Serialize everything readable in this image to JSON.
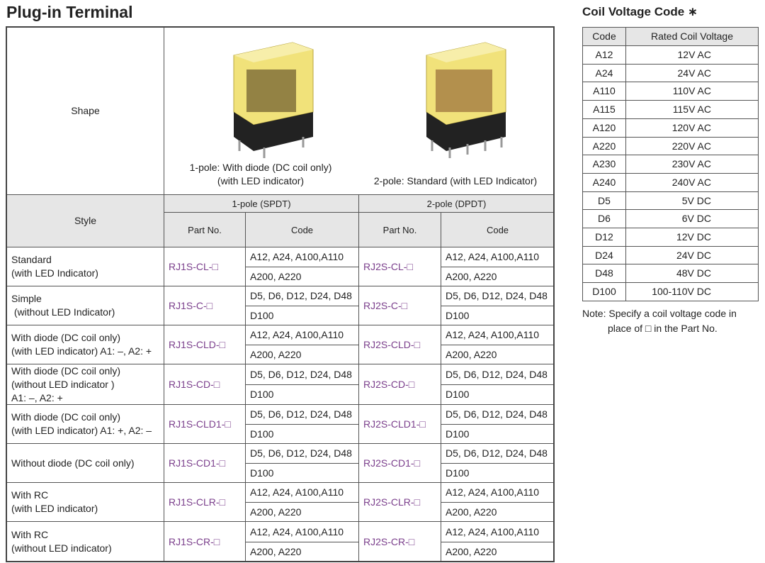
{
  "title": "Plug-in Terminal",
  "shape": {
    "label": "Shape",
    "captions": [
      [
        "1-pole: With diode (DC coil only)",
        "(with LED indicator)"
      ],
      [
        "2-pole: Standard (with LED Indicator)"
      ]
    ]
  },
  "table": {
    "style_header": "Style",
    "groups": [
      {
        "name": "1-pole (SPDT)",
        "part_header": "Part No.",
        "code_header": "Code"
      },
      {
        "name": "2-pole (DPDT)",
        "part_header": "Part No.",
        "code_header": "Code"
      }
    ],
    "rows": [
      {
        "style": [
          "Standard",
          "(with LED Indicator)"
        ],
        "parts": [
          "RJ1S-CL-□",
          "RJ2S-CL-□"
        ],
        "codes": [
          [
            "A12, A24, A100,A110",
            "A200, A220"
          ],
          [
            "A12, A24, A100,A110",
            "A200, A220"
          ]
        ]
      },
      {
        "style": [
          "Simple",
          " (without LED Indicator)"
        ],
        "parts": [
          "RJ1S-C-□",
          "RJ2S-C-□"
        ],
        "codes": [
          [
            "D5, D6, D12, D24, D48",
            "D100"
          ],
          [
            "D5, D6, D12, D24, D48",
            "D100"
          ]
        ]
      },
      {
        "style": [
          "With diode (DC coil only)",
          "(with LED indicator) A1: –, A2: +"
        ],
        "parts": [
          "RJ1S-CLD-□",
          "RJ2S-CLD-□"
        ],
        "codes": [
          [
            "A12, A24, A100,A110",
            "A200, A220"
          ],
          [
            "A12, A24, A100,A110",
            "A200, A220"
          ]
        ]
      },
      {
        "style": [
          "With diode (DC coil only)",
          "(without LED indicator )",
          "A1: –, A2: +"
        ],
        "parts": [
          "RJ1S-CD-□",
          "RJ2S-CD-□"
        ],
        "codes": [
          [
            "D5, D6, D12, D24, D48",
            "D100"
          ],
          [
            "D5, D6, D12, D24, D48",
            "D100"
          ]
        ]
      },
      {
        "style": [
          "With diode (DC coil only)",
          "(with LED indicator) A1: +, A2: –"
        ],
        "parts": [
          "RJ1S-CLD1-□",
          "RJ2S-CLD1-□"
        ],
        "codes": [
          [
            "D5, D6, D12, D24, D48",
            "D100"
          ],
          [
            "D5, D6, D12, D24, D48",
            "D100"
          ]
        ]
      },
      {
        "style": [
          "Without diode (DC coil only)"
        ],
        "parts": [
          "RJ1S-CD1-□",
          "RJ2S-CD1-□"
        ],
        "codes": [
          [
            "D5, D6, D12, D24, D48",
            "D100"
          ],
          [
            "D5, D6, D12, D24, D48",
            "D100"
          ]
        ]
      },
      {
        "style": [
          "With RC",
          "(with LED indicator)"
        ],
        "parts": [
          "RJ1S-CLR-□",
          "RJ2S-CLR-□"
        ],
        "codes": [
          [
            "A12, A24, A100,A110",
            "A200, A220"
          ],
          [
            "A12, A24, A100,A110",
            "A200, A220"
          ]
        ]
      },
      {
        "style": [
          "With RC",
          "(without LED indicator)"
        ],
        "parts": [
          "RJ1S-CR-□",
          "RJ2S-CR-□"
        ],
        "codes": [
          [
            "A12, A24, A100,A110",
            "A200, A220"
          ],
          [
            "A12, A24, A100,A110",
            "A200, A220"
          ]
        ]
      }
    ]
  },
  "coil": {
    "title": "Coil Voltage Code ∗",
    "headers": [
      "Code",
      "Rated Coil Voltage"
    ],
    "rows": [
      [
        "A12",
        "12V AC"
      ],
      [
        "A24",
        "24V AC"
      ],
      [
        "A110",
        "110V AC"
      ],
      [
        "A115",
        "115V AC"
      ],
      [
        "A120",
        "120V AC"
      ],
      [
        "A220",
        "220V AC"
      ],
      [
        "A230",
        "230V AC"
      ],
      [
        "A240",
        "240V AC"
      ],
      [
        "D5",
        "5V DC"
      ],
      [
        "D6",
        "6V DC"
      ],
      [
        "D12",
        "12V DC"
      ],
      [
        "D24",
        "24V DC"
      ],
      [
        "D48",
        "48V DC"
      ],
      [
        "D100",
        "100-110V DC"
      ]
    ],
    "note": [
      "Note: Specify a coil voltage code in",
      "place of □ in the Part No."
    ]
  }
}
